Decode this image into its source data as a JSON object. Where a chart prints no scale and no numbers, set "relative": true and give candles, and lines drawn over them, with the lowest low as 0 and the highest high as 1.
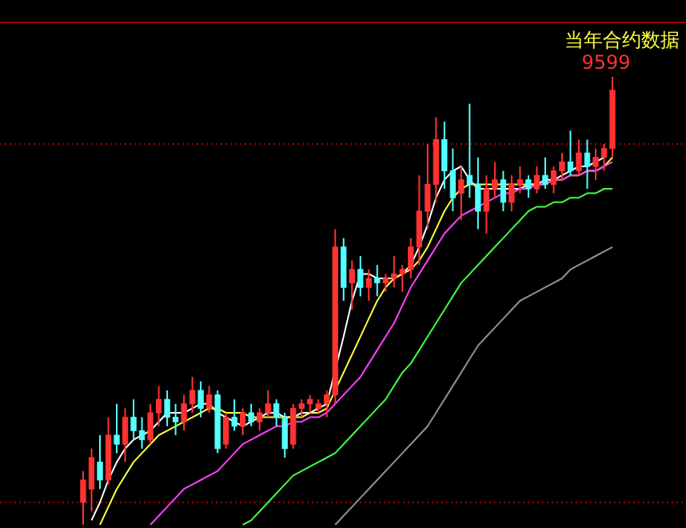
{
  "chart_data": {
    "type": "candlestick",
    "relative": true,
    "annotations": [
      "当年合约数据",
      {
        "text": "9599",
        "y": 1
      }
    ],
    "categories": [
      null,
      null,
      null,
      null,
      null,
      null,
      null,
      null,
      null,
      null,
      null,
      null,
      null,
      null,
      null,
      null,
      null,
      null,
      null,
      null,
      null,
      null,
      null,
      null,
      null,
      null,
      null,
      null,
      null,
      null,
      null,
      null,
      null,
      null,
      null,
      null,
      null,
      null,
      null,
      null,
      null,
      null,
      null,
      null,
      null,
      null,
      null,
      null,
      null,
      null,
      null,
      null,
      null,
      null,
      null,
      null,
      null,
      null,
      null,
      null,
      null,
      null,
      null,
      null
    ],
    "ohlc": [
      [
        0.05,
        0.12,
        0.0,
        0.1
      ],
      [
        0.08,
        0.17,
        0.03,
        0.15
      ],
      [
        0.14,
        0.2,
        0.08,
        0.1
      ],
      [
        0.1,
        0.24,
        0.09,
        0.2
      ],
      [
        0.2,
        0.27,
        0.16,
        0.18
      ],
      [
        0.18,
        0.26,
        0.14,
        0.24
      ],
      [
        0.24,
        0.28,
        0.19,
        0.21
      ],
      [
        0.21,
        0.24,
        0.17,
        0.19
      ],
      [
        0.19,
        0.27,
        0.18,
        0.25
      ],
      [
        0.25,
        0.31,
        0.22,
        0.28
      ],
      [
        0.28,
        0.3,
        0.22,
        0.24
      ],
      [
        0.24,
        0.27,
        0.2,
        0.23
      ],
      [
        0.23,
        0.29,
        0.21,
        0.27
      ],
      [
        0.27,
        0.33,
        0.25,
        0.3
      ],
      [
        0.3,
        0.32,
        0.24,
        0.26
      ],
      [
        0.26,
        0.31,
        0.25,
        0.29
      ],
      [
        0.29,
        0.3,
        0.16,
        0.17
      ],
      [
        0.18,
        0.25,
        0.17,
        0.24
      ],
      [
        0.24,
        0.28,
        0.21,
        0.22
      ],
      [
        0.22,
        0.26,
        0.2,
        0.25
      ],
      [
        0.25,
        0.27,
        0.22,
        0.23
      ],
      [
        0.23,
        0.26,
        0.21,
        0.25
      ],
      [
        0.25,
        0.3,
        0.24,
        0.27
      ],
      [
        0.27,
        0.28,
        0.22,
        0.24
      ],
      [
        0.24,
        0.25,
        0.15,
        0.17
      ],
      [
        0.18,
        0.27,
        0.17,
        0.26
      ],
      [
        0.26,
        0.28,
        0.24,
        0.27
      ],
      [
        0.27,
        0.29,
        0.25,
        0.28
      ],
      [
        0.26,
        0.28,
        0.25,
        0.27
      ],
      [
        0.27,
        0.3,
        0.24,
        0.29
      ],
      [
        0.29,
        0.66,
        0.27,
        0.62
      ],
      [
        0.62,
        0.64,
        0.5,
        0.53
      ],
      [
        0.54,
        0.59,
        0.48,
        0.57
      ],
      [
        0.57,
        0.6,
        0.51,
        0.53
      ],
      [
        0.53,
        0.57,
        0.5,
        0.55
      ],
      [
        0.55,
        0.58,
        0.51,
        0.54
      ],
      [
        0.54,
        0.56,
        0.52,
        0.55
      ],
      [
        0.55,
        0.6,
        0.53,
        0.56
      ],
      [
        0.56,
        0.58,
        0.52,
        0.57
      ],
      [
        0.57,
        0.64,
        0.55,
        0.62
      ],
      [
        0.62,
        0.78,
        0.58,
        0.7
      ],
      [
        0.7,
        0.85,
        0.66,
        0.76
      ],
      [
        0.76,
        0.91,
        0.72,
        0.86
      ],
      [
        0.86,
        0.9,
        0.75,
        0.79
      ],
      [
        0.79,
        0.84,
        0.7,
        0.73
      ],
      [
        0.74,
        0.8,
        0.68,
        0.77
      ],
      [
        0.78,
        0.94,
        0.73,
        0.76
      ],
      [
        0.76,
        0.82,
        0.66,
        0.7
      ],
      [
        0.7,
        0.78,
        0.65,
        0.75
      ],
      [
        0.75,
        0.81,
        0.73,
        0.77
      ],
      [
        0.77,
        0.79,
        0.7,
        0.72
      ],
      [
        0.72,
        0.78,
        0.7,
        0.76
      ],
      [
        0.76,
        0.8,
        0.74,
        0.77
      ],
      [
        0.77,
        0.78,
        0.73,
        0.75
      ],
      [
        0.75,
        0.8,
        0.74,
        0.78
      ],
      [
        0.78,
        0.82,
        0.75,
        0.76
      ],
      [
        0.76,
        0.8,
        0.74,
        0.79
      ],
      [
        0.79,
        0.83,
        0.77,
        0.81
      ],
      [
        0.81,
        0.88,
        0.78,
        0.79
      ],
      [
        0.79,
        0.86,
        0.78,
        0.83
      ],
      [
        0.83,
        0.86,
        0.75,
        0.8
      ],
      [
        0.8,
        0.84,
        0.77,
        0.82
      ],
      [
        0.82,
        0.85,
        0.79,
        0.84
      ],
      [
        0.84,
        1.0,
        0.82,
        0.97
      ]
    ],
    "colors": [
      "#ff3232",
      "#ff3232",
      "#54ffff",
      "#ff3232",
      "#54ffff",
      "#ff3232",
      "#54ffff",
      "#54ffff",
      "#ff3232",
      "#ff3232",
      "#54ffff",
      "#54ffff",
      "#ff3232",
      "#ff3232",
      "#54ffff",
      "#ff3232",
      "#54ffff",
      "#ff3232",
      "#54ffff",
      "#ff3232",
      "#54ffff",
      "#ff3232",
      "#ff3232",
      "#54ffff",
      "#54ffff",
      "#ff3232",
      "#ff3232",
      "#ff3232",
      "#ff3232",
      "#ff3232",
      "#ff3232",
      "#54ffff",
      "#ff3232",
      "#54ffff",
      "#ff3232",
      "#54ffff",
      "#ff3232",
      "#ff3232",
      "#ff3232",
      "#ff3232",
      "#ff3232",
      "#ff3232",
      "#ff3232",
      "#54ffff",
      "#54ffff",
      "#ff3232",
      "#54ffff",
      "#54ffff",
      "#ff3232",
      "#ff3232",
      "#54ffff",
      "#ff3232",
      "#ff3232",
      "#54ffff",
      "#ff3232",
      "#54ffff",
      "#ff3232",
      "#ff3232",
      "#54ffff",
      "#ff3232",
      "#54ffff",
      "#ff3232",
      "#ff3232",
      "#ff3232"
    ],
    "series": [
      {
        "type": "line",
        "color": "#ffffff",
        "values": [
          null,
          0.01,
          0.05,
          0.1,
          0.14,
          0.17,
          0.19,
          0.2,
          0.21,
          0.23,
          0.25,
          0.25,
          0.25,
          0.26,
          0.27,
          0.27,
          0.25,
          0.24,
          0.23,
          0.22,
          0.23,
          0.24,
          0.25,
          0.25,
          0.24,
          0.24,
          0.25,
          0.25,
          0.26,
          0.27,
          null,
          0.42,
          0.5,
          0.56,
          0.56,
          0.55,
          0.55,
          0.55,
          0.56,
          0.58,
          0.62,
          0.67,
          0.73,
          0.77,
          0.79,
          0.8,
          0.77,
          0.75,
          0.75,
          0.75,
          0.75,
          0.75,
          0.75,
          0.76,
          0.76,
          0.77,
          0.77,
          0.78,
          0.79,
          0.8,
          0.8,
          0.81,
          0.82,
          null
        ]
      },
      {
        "type": "line",
        "color": "#ffff40",
        "values": [
          null,
          null,
          0.0,
          0.04,
          0.08,
          0.11,
          0.14,
          0.16,
          0.18,
          0.2,
          0.21,
          0.22,
          0.23,
          0.24,
          0.25,
          0.26,
          0.26,
          0.25,
          0.25,
          0.25,
          0.24,
          0.24,
          0.24,
          0.24,
          0.24,
          0.24,
          0.24,
          0.25,
          0.25,
          0.26,
          null,
          0.34,
          0.38,
          0.42,
          0.46,
          0.5,
          0.53,
          0.55,
          0.56,
          0.57,
          0.59,
          0.62,
          0.66,
          0.7,
          0.73,
          0.75,
          0.76,
          0.76,
          0.76,
          0.76,
          0.76,
          0.76,
          0.76,
          0.76,
          0.76,
          0.76,
          0.77,
          0.77,
          0.78,
          0.78,
          0.79,
          0.79,
          0.8,
          0.82
        ]
      },
      {
        "type": "line",
        "color": "#ff40ff",
        "values": [
          null,
          null,
          null,
          null,
          null,
          null,
          null,
          null,
          0.0,
          0.02,
          0.04,
          0.06,
          0.08,
          0.09,
          0.1,
          0.11,
          0.12,
          0.14,
          0.16,
          0.18,
          0.19,
          0.2,
          0.21,
          0.22,
          0.22,
          0.23,
          0.23,
          0.24,
          0.24,
          0.25,
          0.27,
          0.29,
          0.31,
          0.33,
          0.36,
          0.39,
          0.42,
          0.45,
          0.49,
          0.53,
          0.56,
          0.59,
          0.62,
          0.65,
          0.67,
          0.69,
          0.7,
          0.71,
          0.72,
          0.73,
          0.74,
          0.74,
          0.75,
          0.75,
          0.76,
          0.76,
          0.77,
          0.77,
          0.78,
          0.78,
          0.79,
          0.79,
          0.8,
          0.81
        ]
      },
      {
        "type": "line",
        "color": "#40ff40",
        "values": [
          null,
          null,
          null,
          null,
          null,
          null,
          null,
          null,
          null,
          null,
          null,
          null,
          null,
          null,
          null,
          null,
          null,
          null,
          null,
          0.0,
          0.01,
          0.03,
          0.05,
          0.07,
          0.09,
          0.11,
          0.12,
          0.13,
          0.14,
          0.15,
          0.16,
          0.18,
          0.2,
          0.22,
          0.24,
          0.26,
          0.28,
          0.31,
          0.34,
          0.36,
          0.39,
          0.42,
          0.45,
          0.48,
          0.51,
          0.54,
          0.56,
          0.58,
          0.6,
          0.62,
          0.64,
          0.66,
          0.68,
          0.7,
          0.71,
          0.71,
          0.72,
          0.72,
          0.73,
          0.73,
          0.74,
          0.74,
          0.75,
          0.75
        ]
      },
      {
        "type": "line",
        "color": "#909090",
        "values": [
          null,
          null,
          null,
          null,
          null,
          null,
          null,
          null,
          null,
          null,
          null,
          null,
          null,
          null,
          null,
          null,
          null,
          null,
          null,
          null,
          null,
          null,
          null,
          null,
          null,
          null,
          null,
          null,
          null,
          null,
          0.0,
          0.02,
          0.04,
          0.06,
          0.08,
          0.1,
          0.12,
          0.14,
          0.16,
          0.18,
          0.2,
          0.22,
          0.25,
          0.28,
          0.31,
          0.34,
          0.37,
          0.4,
          0.42,
          0.44,
          0.46,
          0.48,
          0.5,
          0.51,
          0.52,
          0.53,
          0.54,
          0.55,
          0.57,
          0.58,
          0.59,
          0.6,
          0.61,
          0.62
        ]
      }
    ],
    "ref_lines": [
      {
        "axis": "y",
        "value": 0.85,
        "color": "#a00000",
        "line_style": "dotted"
      },
      {
        "axis": "y",
        "value": 0.05,
        "color": "#a00000",
        "line_style": "dotted"
      }
    ]
  }
}
